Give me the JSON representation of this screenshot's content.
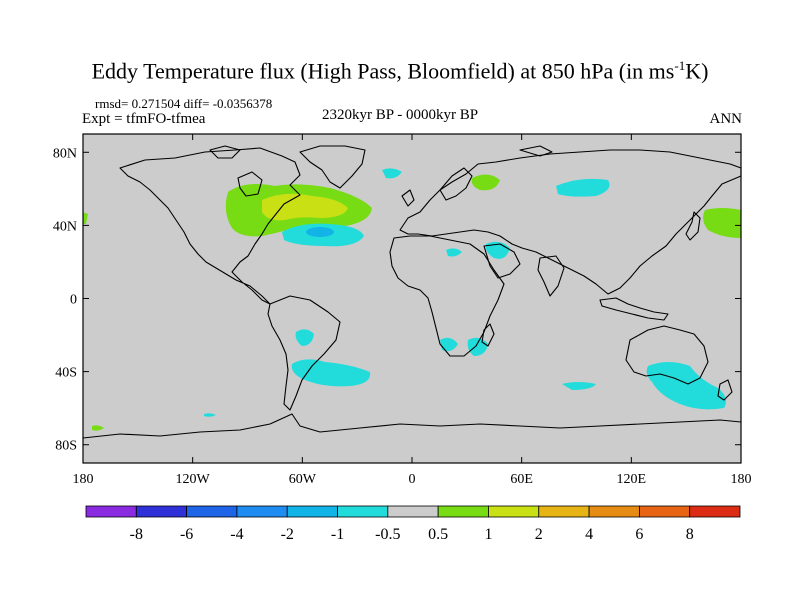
{
  "title": {
    "main": "Eddy Temperature flux (High Pass, Bloomfield) at 850 hPa (in ms",
    "superscript": "-1",
    "suffix": "K)"
  },
  "stats": "rmsd= 0.271504 diff= -0.0356378",
  "experiment": "Expt = tfmFO-tfmea",
  "period": "2320kyr BP - 0000kyr BP",
  "season": "ANN",
  "axes": {
    "x_ticks": [
      {
        "label": "180",
        "lon": -180
      },
      {
        "label": "120W",
        "lon": -120
      },
      {
        "label": "60W",
        "lon": -60
      },
      {
        "label": "0",
        "lon": 0
      },
      {
        "label": "60E",
        "lon": 60
      },
      {
        "label": "120E",
        "lon": 120
      },
      {
        "label": "180",
        "lon": 180
      }
    ],
    "y_ticks": [
      {
        "label": "80N",
        "lat": 80
      },
      {
        "label": "40N",
        "lat": 40
      },
      {
        "label": "0",
        "lat": 0
      },
      {
        "label": "40S",
        "lat": -40
      },
      {
        "label": "80S",
        "lat": -80
      }
    ],
    "lon_range": [
      -180,
      180
    ],
    "lat_range": [
      -90,
      90
    ]
  },
  "colorbar": {
    "colors": [
      "#8a2be2",
      "#3030d8",
      "#1e64e6",
      "#1e8cf0",
      "#12b4e8",
      "#22dcdc",
      "#cccccc",
      "#78dc14",
      "#c8e014",
      "#e6b414",
      "#e68c14",
      "#e66414",
      "#dc2d14"
    ],
    "labels": [
      "-8",
      "-6",
      "-4",
      "-2",
      "-1",
      "-0.5",
      "0.5",
      "1",
      "2",
      "4",
      "6",
      "8"
    ]
  },
  "colors": {
    "land_background": "#cccccc",
    "coastline": "#000000"
  }
}
